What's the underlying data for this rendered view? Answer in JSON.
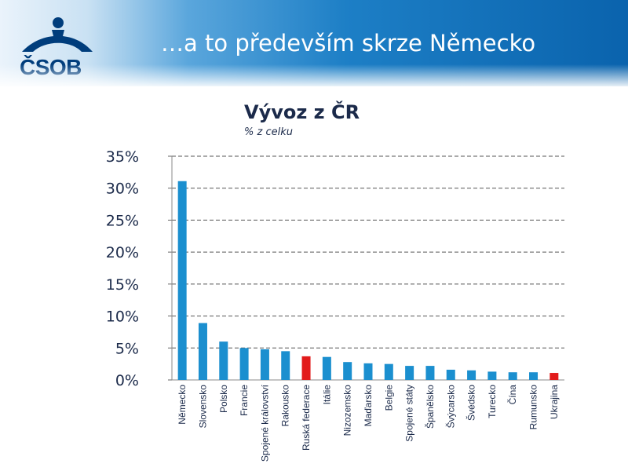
{
  "header": {
    "logo_text": "ČSOB",
    "title": "…a to především skrze Německo"
  },
  "colors": {
    "bar_default": "#1b8fcf",
    "bar_highlight": "#e21b1b",
    "logo": "#003d7c"
  },
  "chart_data": {
    "type": "bar",
    "title": "Vývoz z ČR",
    "subtitle": "% z celku",
    "xlabel": "",
    "ylabel": "",
    "ylim": [
      0,
      35
    ],
    "yticks": [
      0,
      5,
      10,
      15,
      20,
      25,
      30,
      35
    ],
    "ytick_labels": [
      "0%",
      "5%",
      "10%",
      "15%",
      "20%",
      "25%",
      "30%",
      "35%"
    ],
    "grid": true,
    "categories": [
      "Německo",
      "Slovensko",
      "Polsko",
      "Francie",
      "Spojené království",
      "Rakousko",
      "Ruská federace",
      "Itálie",
      "Nizozemsko",
      "Maďarsko",
      "Belgie",
      "Spojené státy",
      "Španělsko",
      "Švýcarsko",
      "Švédsko",
      "Turecko",
      "Čína",
      "Rumunsko",
      "Ukrajina"
    ],
    "values": [
      31.1,
      8.9,
      6.0,
      5.0,
      4.8,
      4.5,
      3.7,
      3.6,
      2.8,
      2.6,
      2.5,
      2.2,
      2.2,
      1.6,
      1.5,
      1.3,
      1.2,
      1.2,
      1.1
    ],
    "highlighted": [
      "Ruská federace",
      "Ukrajina"
    ]
  }
}
